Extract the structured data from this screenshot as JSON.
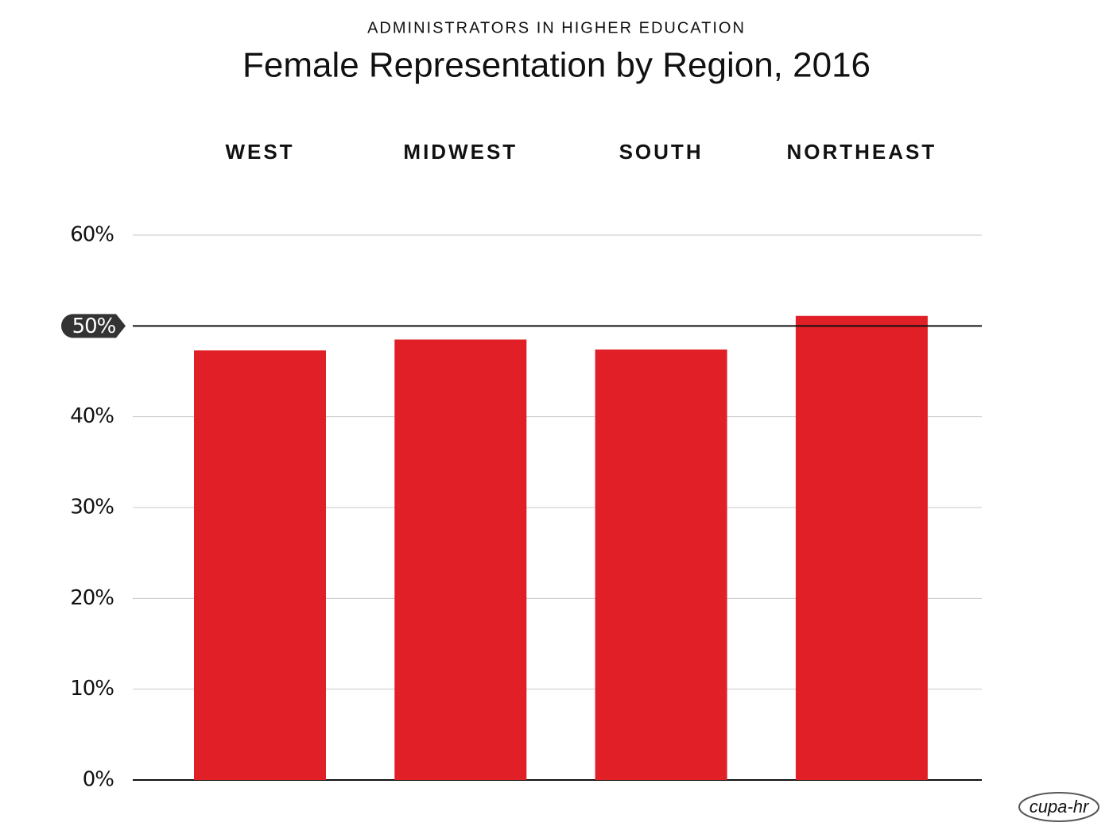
{
  "chart_data": {
    "type": "bar",
    "subtitle": "ADMINISTRATORS IN HIGHER EDUCATION",
    "title": "Female Representation by Region, 2016",
    "categories": [
      "WEST",
      "MIDWEST",
      "SOUTH",
      "NORTHEAST"
    ],
    "values": [
      47.3,
      48.5,
      47.4,
      51.1
    ],
    "color": "#e01f27",
    "ylim": [
      0,
      60
    ],
    "yticks": [
      {
        "value": 0,
        "label": "0%"
      },
      {
        "value": 10,
        "label": "10%"
      },
      {
        "value": 20,
        "label": "20%"
      },
      {
        "value": 30,
        "label": "30%"
      },
      {
        "value": 40,
        "label": "40%"
      },
      {
        "value": 50,
        "label": "50%"
      },
      {
        "value": 60,
        "label": "60%"
      }
    ],
    "highlight_tick": 50,
    "grid": true,
    "logo": "cupa-hr"
  }
}
